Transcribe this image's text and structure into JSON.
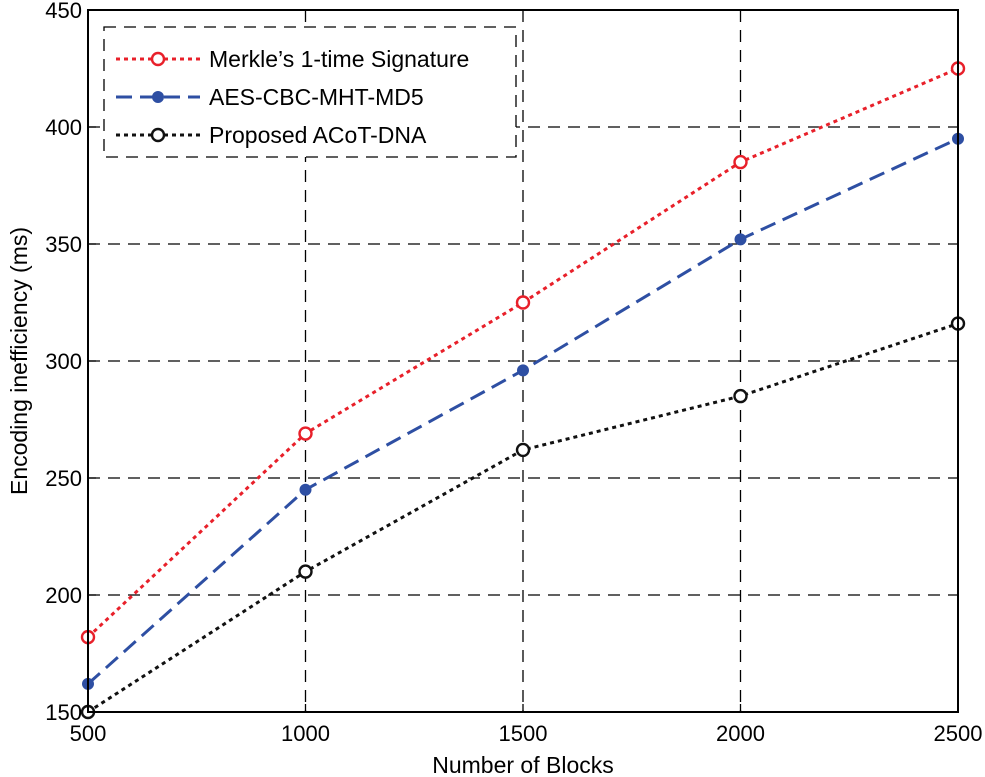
{
  "chart_data": {
    "type": "line",
    "title": "",
    "xlabel": "Number of Blocks",
    "ylabel": "Encoding inefficiency (ms)",
    "x": [
      500,
      1000,
      1500,
      2000,
      2500
    ],
    "xlim": [
      500,
      2500
    ],
    "ylim": [
      150,
      450
    ],
    "xticks": [
      "500",
      "1000",
      "1500",
      "2000",
      "2500"
    ],
    "yticks": [
      "150",
      "200",
      "250",
      "300",
      "350",
      "400",
      "450"
    ],
    "grid": true,
    "legend_position": "top-left",
    "series": [
      {
        "name": "Merkle’s 1-time Signature",
        "color": "#e8202a",
        "line": "dotted",
        "marker": "open-circle",
        "values": [
          182,
          269,
          325,
          385,
          425
        ]
      },
      {
        "name": "AES-CBC-MHT-MD5",
        "color": "#2e4fa3",
        "line": "dashed",
        "marker": "filled-circle",
        "values": [
          162,
          245,
          296,
          352,
          395
        ]
      },
      {
        "name": "Proposed ACoT-DNA",
        "color": "#111111",
        "line": "dotted",
        "marker": "open-circle",
        "values": [
          150,
          210,
          262,
          285,
          316
        ]
      }
    ]
  }
}
